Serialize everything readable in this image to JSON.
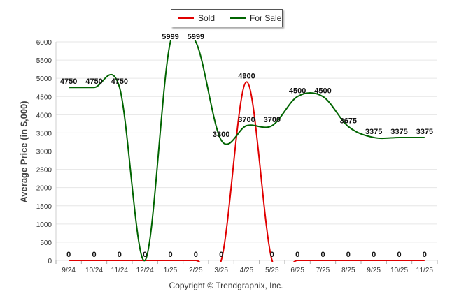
{
  "chart_data": {
    "type": "line",
    "ylabel": "Average Price (in $,000)",
    "xlabel": "",
    "title": "",
    "ylim": [
      0,
      6000
    ],
    "yticks": [
      0,
      500,
      1000,
      1500,
      2000,
      2500,
      3000,
      3500,
      4000,
      4500,
      5000,
      5500,
      6000
    ],
    "categories": [
      "9/24",
      "10/24",
      "11/24",
      "12/24",
      "1/25",
      "2/25",
      "3/25",
      "4/25",
      "5/25",
      "6/25",
      "7/25",
      "8/25",
      "9/25",
      "10/25",
      "11/25"
    ],
    "series": [
      {
        "name": "Sold",
        "color": "#e00000",
        "values": [
          0,
          0,
          0,
          0,
          0,
          0,
          0,
          4900,
          0,
          0,
          0,
          0,
          0,
          0,
          0
        ],
        "labels": [
          "0",
          "0",
          "0",
          "0",
          "0",
          "0",
          "0",
          "4900",
          "0",
          "0",
          "0",
          "0",
          "0",
          "0",
          "0"
        ]
      },
      {
        "name": "For Sale",
        "color": "#006400",
        "values": [
          4750,
          4750,
          4750,
          0,
          5999,
          5999,
          3300,
          3700,
          3700,
          4500,
          4500,
          3675,
          3375,
          3375,
          3375
        ],
        "labels": [
          "4750",
          "4750",
          "4750",
          "0",
          "5999",
          "5999",
          "3300",
          "3700",
          "3700",
          "4500",
          "4500",
          "3675",
          "3375",
          "3375",
          "3375"
        ]
      }
    ],
    "legend": "top-center",
    "grid": true
  },
  "footer": {
    "credit": "Copyright © Trendgraphix, Inc."
  }
}
